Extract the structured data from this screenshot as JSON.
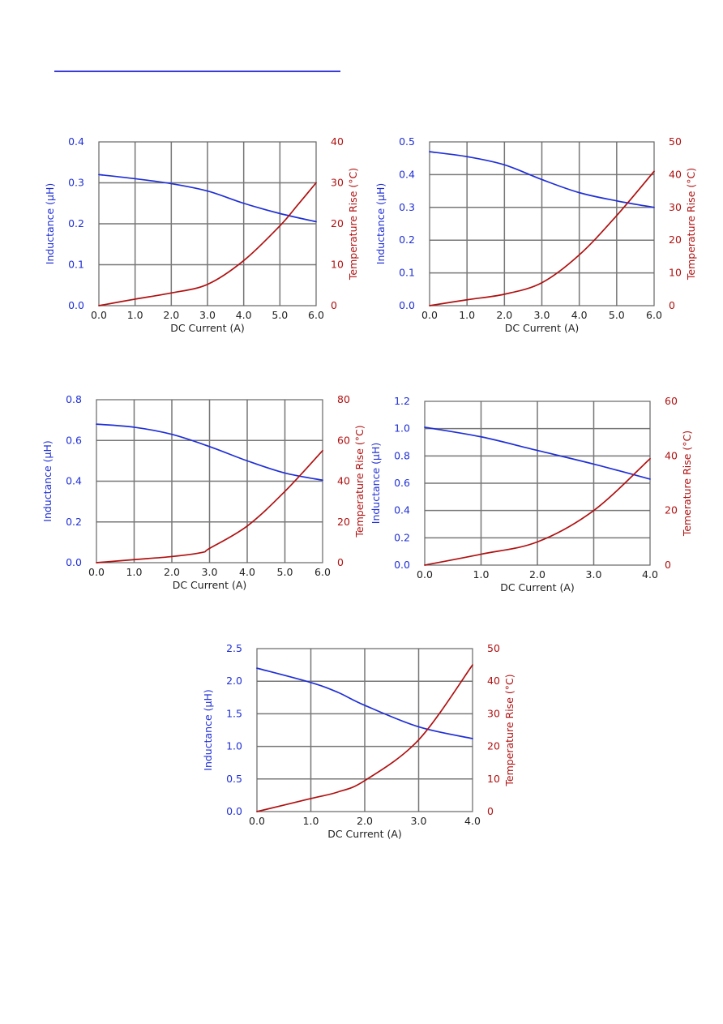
{
  "colors": {
    "inductance": "#1f2fd6",
    "temperature": "#b01010",
    "grid": "#777777"
  },
  "chart_data": [
    {
      "type": "line",
      "xlabel": "DC Current (A)",
      "ylabel": "Inductance (μH)",
      "y2label": "Temperature Rise (°C)",
      "xlim": [
        0,
        6
      ],
      "ylim": [
        0,
        0.4
      ],
      "y2lim": [
        0,
        40
      ],
      "xticks": [
        "0.0",
        "1.0",
        "2.0",
        "3.0",
        "4.0",
        "5.0",
        "6.0"
      ],
      "yticks": [
        "0.0",
        "0.1",
        "0.2",
        "0.3",
        "0.4"
      ],
      "y2ticks": [
        "0",
        "10",
        "20",
        "30",
        "40"
      ],
      "grid": true,
      "series": [
        {
          "axis": "left",
          "x": [
            0,
            1,
            2,
            3,
            4,
            5,
            6
          ],
          "values": [
            0.32,
            0.31,
            0.298,
            0.28,
            0.25,
            0.225,
            0.205
          ]
        },
        {
          "axis": "right",
          "x": [
            0,
            1,
            2,
            3,
            4,
            5,
            5.5,
            6
          ],
          "values": [
            0,
            1.6,
            3.1,
            5.2,
            11,
            19.5,
            24.7,
            30
          ]
        }
      ]
    },
    {
      "type": "line",
      "xlabel": "DC Current (A)",
      "ylabel": "Inductance (μH)",
      "y2label": "Temperature Rise (°C)",
      "xlim": [
        0,
        6
      ],
      "ylim": [
        0,
        0.5
      ],
      "y2lim": [
        0,
        50
      ],
      "xticks": [
        "0.0",
        "1.0",
        "2.0",
        "3.0",
        "4.0",
        "5.0",
        "6.0"
      ],
      "yticks": [
        "0.0",
        "0.1",
        "0.2",
        "0.3",
        "0.4",
        "0.5"
      ],
      "y2ticks": [
        "0",
        "10",
        "20",
        "30",
        "40",
        "50"
      ],
      "grid": true,
      "series": [
        {
          "axis": "left",
          "x": [
            0,
            1,
            2,
            3,
            4,
            5,
            6
          ],
          "values": [
            0.47,
            0.455,
            0.43,
            0.385,
            0.345,
            0.32,
            0.3
          ]
        },
        {
          "axis": "right",
          "x": [
            0,
            1,
            2,
            3,
            4,
            5,
            6
          ],
          "values": [
            0,
            1.8,
            3.5,
            7,
            15.5,
            27.5,
            41
          ]
        }
      ]
    },
    {
      "type": "line",
      "xlabel": "DC Current (A)",
      "ylabel": "Inductance (μH)",
      "y2label": "Temperature Rise (°C)",
      "xlim": [
        0,
        6
      ],
      "ylim": [
        0,
        0.8
      ],
      "y2lim": [
        0,
        80
      ],
      "xticks": [
        "0.0",
        "1.0",
        "2.0",
        "3.0",
        "4.0",
        "5.0",
        "6.0"
      ],
      "yticks": [
        "0.0",
        "0.2",
        "0.4",
        "0.6",
        "0.8"
      ],
      "y2ticks": [
        "0",
        "20",
        "40",
        "60",
        "80"
      ],
      "grid": true,
      "series": [
        {
          "axis": "left",
          "x": [
            0,
            1,
            2,
            3,
            4,
            5,
            6
          ],
          "values": [
            0.68,
            0.665,
            0.63,
            0.57,
            0.5,
            0.44,
            0.405
          ]
        },
        {
          "axis": "right",
          "x": [
            0,
            1,
            2,
            2.8,
            3,
            4,
            5,
            6
          ],
          "values": [
            0,
            1.5,
            3,
            5,
            7,
            18,
            35,
            55
          ]
        }
      ]
    },
    {
      "type": "line",
      "xlabel": "DC Current (A)",
      "ylabel": "Inductance (μH)",
      "y2label": "Temerature Rise (°C)",
      "xlim": [
        0,
        4
      ],
      "ylim": [
        0,
        1.2
      ],
      "y2lim": [
        0,
        60
      ],
      "xticks": [
        "0.0",
        "1.0",
        "2.0",
        "3.0",
        "4.0"
      ],
      "yticks": [
        "0.0",
        "0.2",
        "0.4",
        "0.6",
        "0.8",
        "1.0",
        "1.2"
      ],
      "y2ticks": [
        "0",
        "20",
        "40",
        "60"
      ],
      "grid": true,
      "series": [
        {
          "axis": "left",
          "x": [
            0,
            1,
            2,
            3,
            4
          ],
          "values": [
            1.01,
            0.94,
            0.84,
            0.74,
            0.63
          ]
        },
        {
          "axis": "right",
          "x": [
            0,
            1,
            2,
            3,
            4
          ],
          "values": [
            0,
            4,
            8.5,
            20,
            39
          ]
        }
      ]
    },
    {
      "type": "line",
      "xlabel": "DC Current (A)",
      "ylabel": "Inductance (μH)",
      "y2label": "Temperature Rise (°C)",
      "xlim": [
        0,
        4
      ],
      "ylim": [
        0,
        2.5
      ],
      "y2lim": [
        0,
        50
      ],
      "xticks": [
        "0.0",
        "1.0",
        "2.0",
        "3.0",
        "4.0"
      ],
      "yticks": [
        "0.0",
        "0.5",
        "1.0",
        "1.5",
        "2.0",
        "2.5"
      ],
      "y2ticks": [
        "0",
        "10",
        "20",
        "30",
        "40",
        "50"
      ],
      "grid": true,
      "series": [
        {
          "axis": "left",
          "x": [
            0,
            1,
            1.5,
            2,
            3,
            4
          ],
          "values": [
            2.2,
            1.98,
            1.83,
            1.63,
            1.3,
            1.12
          ]
        },
        {
          "axis": "right",
          "x": [
            0,
            1,
            1.5,
            2,
            3,
            4
          ],
          "values": [
            0,
            4,
            6,
            9.5,
            22,
            45
          ]
        }
      ]
    }
  ]
}
